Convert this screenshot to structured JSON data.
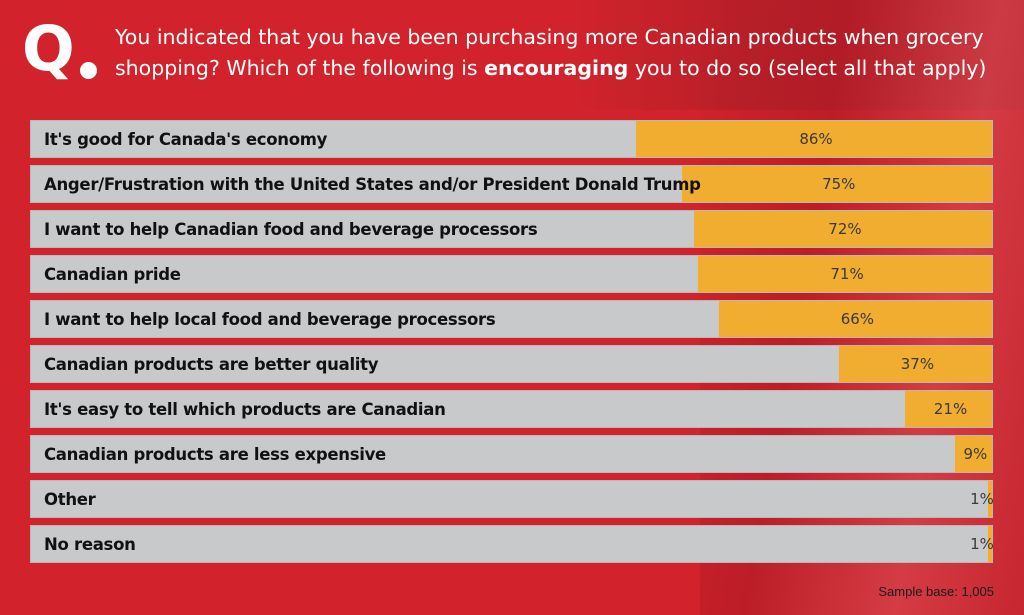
{
  "header": {
    "q_label": "Q",
    "question_part1": "You indicated that you have been purchasing more Canadian products when grocery shopping? Which of the following is ",
    "question_bold": "encouraging",
    "question_part2": " you to do so (select all that apply)"
  },
  "footer": {
    "sample_base": "Sample base: 1,005"
  },
  "colors": {
    "background": "#d2232c",
    "bar_track": "#c8c9cb",
    "bar_fill": "#f0ad2f"
  },
  "chart_data": {
    "type": "bar",
    "orientation": "horizontal",
    "title": "You indicated that you have been purchasing more Canadian products when grocery shopping? Which of the following is encouraging you to do so (select all that apply)",
    "xlabel": "",
    "ylabel": "",
    "xlim": [
      0,
      100
    ],
    "unit": "%",
    "categories": [
      "It's good for Canada's economy",
      "Anger/Frustration with the United States and/or President Donald Trump",
      "I want to help Canadian food and beverage processors",
      "Canadian pride",
      "I want to help local food and beverage processors",
      "Canadian products are better quality",
      "It's easy to tell which products are Canadian",
      "Canadian products are less expensive",
      "Other",
      "No reason"
    ],
    "values": [
      86,
      75,
      72,
      71,
      66,
      37,
      21,
      9,
      1,
      1
    ],
    "value_labels": [
      "86%",
      "75%",
      "72%",
      "71%",
      "66%",
      "37%",
      "21%",
      "9%",
      "1%",
      "1%"
    ],
    "grid": false,
    "legend": "none",
    "note": "Sample base: 1,005"
  }
}
